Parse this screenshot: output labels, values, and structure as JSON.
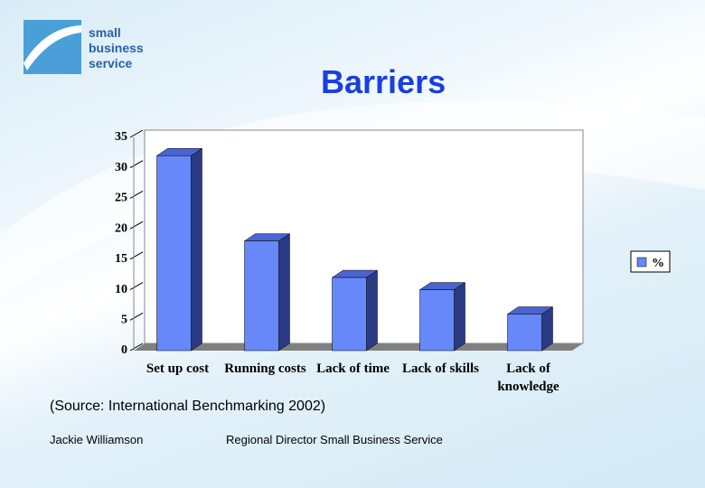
{
  "slide": {
    "logo": [
      "small",
      "business",
      "service"
    ],
    "source": "(Source: International Benchmarking 2002)",
    "footer_left": "Jackie Williamson",
    "footer_right": "Regional Director Small Business Service"
  },
  "chart_data": {
    "type": "bar3d",
    "title": "Barriers",
    "categories": [
      "Set up cost",
      "Running costs",
      "Lack of time",
      "Lack of skills",
      "Lack of knowledge"
    ],
    "series": [
      {
        "name": "%",
        "color": "#6688f8",
        "values": [
          32,
          18,
          12,
          10,
          6
        ]
      }
    ],
    "ylim": [
      0,
      35
    ],
    "yticks": [
      0,
      5,
      10,
      15,
      20,
      25,
      30,
      35
    ],
    "legend": "right"
  }
}
